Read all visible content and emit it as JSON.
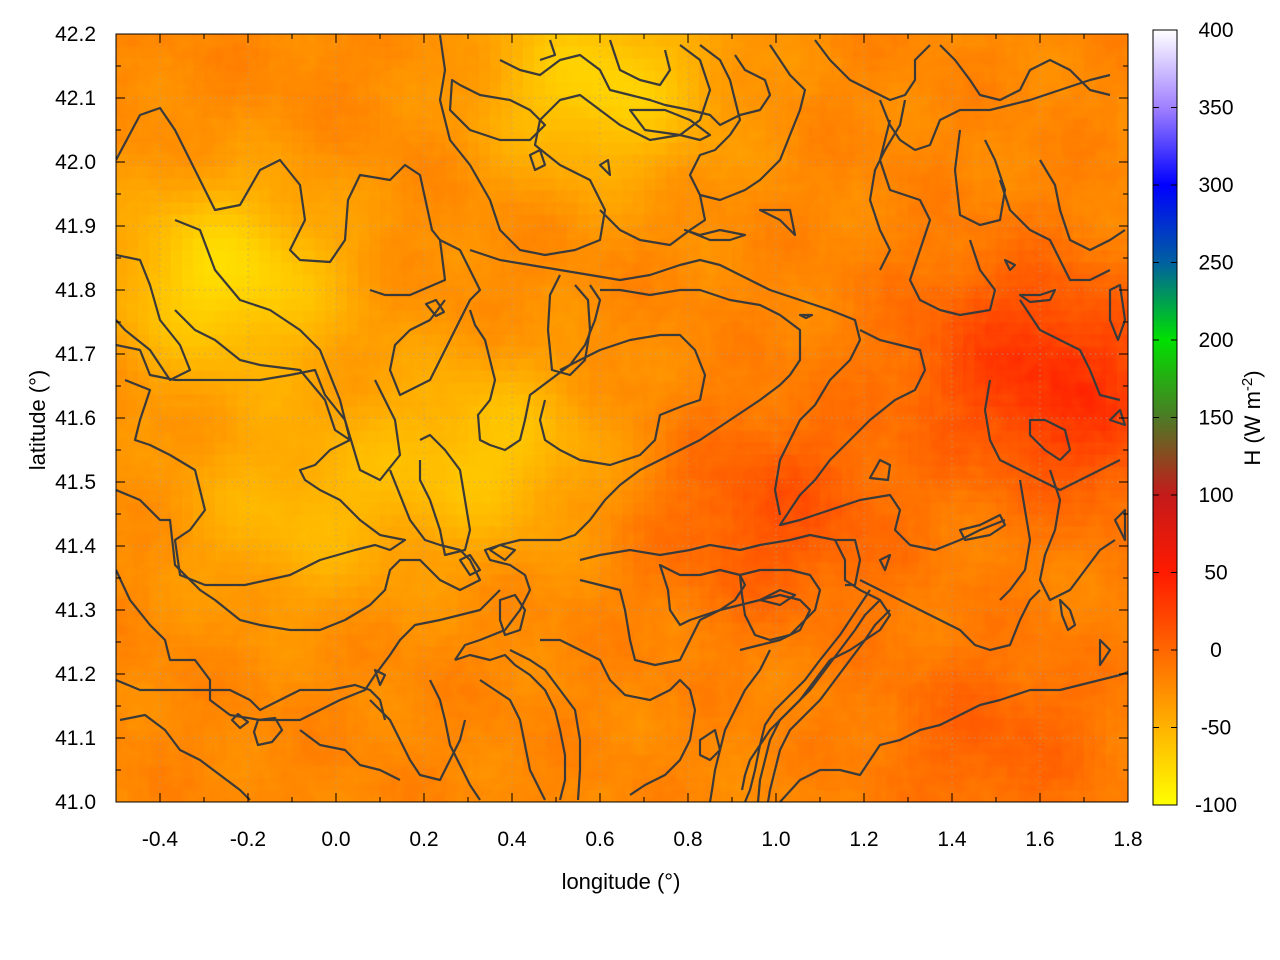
{
  "chart_data": {
    "type": "heatmap",
    "title": "",
    "xlabel": "longitude (°)",
    "ylabel": "latitude (°)",
    "xlim": [
      -0.5,
      1.8
    ],
    "ylim": [
      41.0,
      42.2
    ],
    "x_ticks": [
      -0.4,
      -0.2,
      0.0,
      0.2,
      0.4,
      0.6,
      0.8,
      1.0,
      1.2,
      1.4,
      1.6,
      1.8
    ],
    "x_tick_labels": [
      "-0.4",
      "-0.2",
      "0.0",
      "0.2",
      "0.4",
      "0.6",
      "0.8",
      "1.0",
      "1.2",
      "1.4",
      "1.6",
      "1.8"
    ],
    "y_ticks": [
      41.0,
      41.1,
      41.2,
      41.3,
      41.4,
      41.5,
      41.6,
      41.7,
      41.8,
      41.9,
      42.0,
      42.1,
      42.2
    ],
    "y_tick_labels": [
      "41.0",
      "41.1",
      "41.2",
      "41.3",
      "41.4",
      "41.5",
      "41.6",
      "41.7",
      "41.8",
      "41.9",
      "42.0",
      "42.1",
      "42.2"
    ],
    "grid": true,
    "grid_style": "dotted",
    "colorbar": {
      "label": "H (W m",
      "label_superscript": "-2",
      "label_suffix": ")",
      "range": [
        -100,
        400
      ],
      "ticks": [
        -100,
        -50,
        0,
        50,
        100,
        150,
        200,
        250,
        300,
        350,
        400
      ],
      "tick_labels": [
        "-100",
        "-50",
        "0",
        "50",
        "100",
        "150",
        "200",
        "250",
        "300",
        "350",
        "400"
      ],
      "stops": [
        {
          "value": -100,
          "color": "#ffff00"
        },
        {
          "value": -50,
          "color": "#ffb300"
        },
        {
          "value": 0,
          "color": "#ff6600"
        },
        {
          "value": 50,
          "color": "#ff1a00"
        },
        {
          "value": 100,
          "color": "#c41a1a"
        },
        {
          "value": 150,
          "color": "#4d7a26"
        },
        {
          "value": 200,
          "color": "#00e000"
        },
        {
          "value": 250,
          "color": "#0060a0"
        },
        {
          "value": 300,
          "color": "#0000ff"
        },
        {
          "value": 350,
          "color": "#a080ff"
        },
        {
          "value": 400,
          "color": "#ffffff"
        }
      ]
    },
    "field_summary": {
      "typical_range_W_m2": [
        -60,
        20
      ],
      "warm_regions": [
        {
          "lon": 1.55,
          "lat": 41.7,
          "value": 20
        },
        {
          "lon": 1.0,
          "lat": 41.45,
          "value": 15
        },
        {
          "lon": 1.75,
          "lat": 41.6,
          "value": 15
        },
        {
          "lon": 1.5,
          "lat": 41.1,
          "value": 5
        }
      ],
      "cool_regions": [
        {
          "lon": -0.25,
          "lat": 41.82,
          "value": -75
        },
        {
          "lon": 0.6,
          "lat": 42.12,
          "value": -70
        },
        {
          "lon": 0.35,
          "lat": 41.55,
          "value": -60
        },
        {
          "lon": -0.1,
          "lat": 41.45,
          "value": -50
        }
      ]
    },
    "contour_lines": "terrain elevation isolines overlaid in dark grey"
  }
}
